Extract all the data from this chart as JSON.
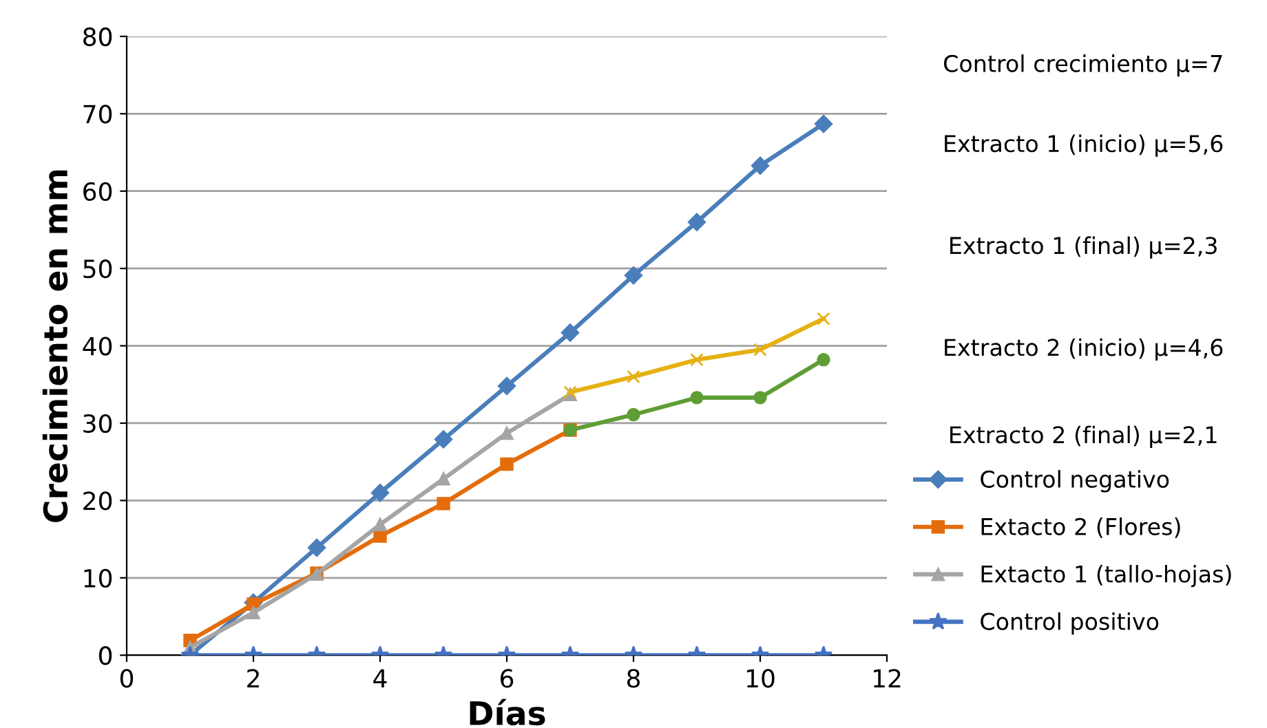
{
  "chart_data": {
    "type": "line",
    "xlabel": "Días",
    "ylabel": "Crecimiento en mm",
    "xlim": [
      0,
      12
    ],
    "xticks": [
      0,
      2,
      4,
      6,
      8,
      10,
      12
    ],
    "ylim": [
      0,
      80
    ],
    "yticks": [
      0,
      10,
      20,
      30,
      40,
      50,
      60,
      70,
      80
    ],
    "grid": "y",
    "legend": "right",
    "line_style": "solid",
    "annotations": [
      "Control crecimiento µ=7",
      "Extracto 1 (inicio) µ=5,6",
      "Extracto 1 (final) µ=2,3",
      "Extracto 2 (inicio) µ=4,6",
      "Extracto 2 (final) µ=2,1"
    ],
    "series": [
      {
        "name": "Control negativo",
        "color": "#4a7ebb",
        "marker": "diamond",
        "x": [
          1,
          2,
          3,
          4,
          5,
          6,
          7,
          8,
          9,
          10,
          11
        ],
        "values": [
          0,
          6.8,
          13.9,
          21.0,
          27.9,
          34.8,
          41.7,
          49.1,
          56.0,
          63.3,
          68.7
        ]
      },
      {
        "name": "Extacto 2 (Flores)",
        "color": "#e46c0a",
        "marker": "square",
        "x": [
          1,
          2,
          3,
          4,
          5,
          6,
          7
        ],
        "values": [
          1.9,
          6.6,
          10.6,
          15.4,
          19.6,
          24.7,
          29.1
        ]
      },
      {
        "name": "Extacto 1 (tallo-hojas)",
        "color": "#a5a5a5",
        "marker": "triangle",
        "x": [
          1,
          2,
          3,
          4,
          5,
          6,
          7
        ],
        "values": [
          1.0,
          5.5,
          10.5,
          16.9,
          22.8,
          28.7,
          33.7
        ]
      },
      {
        "name": "Control positivo",
        "color": "#4472c4",
        "marker": "star",
        "x": [
          1,
          2,
          3,
          4,
          5,
          6,
          7,
          8,
          9,
          10,
          11
        ],
        "values": [
          0,
          0,
          0,
          0,
          0,
          0,
          0,
          0,
          0,
          0,
          0
        ]
      },
      {
        "color": "#e6b012",
        "marker": "cross",
        "x": [
          7,
          8,
          9,
          10,
          11
        ],
        "values": [
          34.0,
          36.0,
          38.2,
          39.5,
          43.5
        ]
      },
      {
        "color": "#5f9e35",
        "marker": "circle",
        "x": [
          7,
          8,
          9,
          10,
          11
        ],
        "values": [
          29.1,
          31.1,
          33.3,
          33.3,
          38.2
        ]
      }
    ]
  }
}
